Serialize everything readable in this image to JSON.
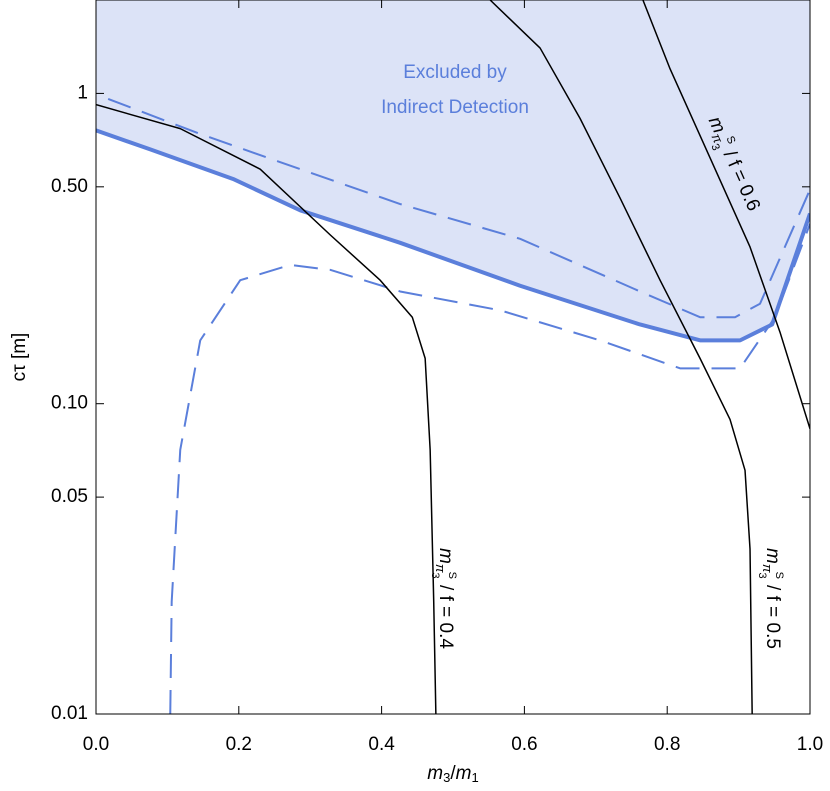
{
  "chart_data": {
    "type": "line",
    "ylabel": "cτ [m]",
    "xlabel_parts": [
      "m",
      "3",
      "/",
      "m",
      "1"
    ],
    "xlim": [
      0,
      1
    ],
    "xticks": [
      {
        "value": 0,
        "label": "0.0"
      },
      0.2,
      0.4,
      0.6,
      0.8,
      {
        "value": 1,
        "label": "1.0"
      }
    ],
    "ylim": [
      0.01,
      2
    ],
    "log_y": true,
    "yticks": [
      0.01,
      0.05,
      {
        "value": 0.1,
        "label": "0.10"
      },
      {
        "value": 0.5,
        "label": "0.50"
      },
      1
    ],
    "region_text": [
      "Excluded by",
      "Indirect Detection"
    ],
    "region_color": "#dce3f7",
    "mass_label": {
      "symbol": "m",
      "sub": "π",
      "sub_index": "3",
      "sup": "S"
    },
    "series": [
      {
        "color": "#5b7fdb",
        "style": "solid",
        "width": 4,
        "fill_above": true,
        "x": [
          0,
          0.076,
          0.192,
          0.286,
          0.426,
          0.594,
          0.762,
          0.846,
          0.902,
          0.947,
          1.0
        ],
        "values": [
          0.76,
          0.66,
          0.53,
          0.42,
          0.33,
          0.24,
          0.18,
          0.16,
          0.16,
          0.18,
          0.41
        ]
      },
      {
        "color": "#5b7fdb",
        "style": "dashed",
        "width": 2,
        "x": [
          0.017,
          0.146,
          0.286,
          0.426,
          0.594,
          0.762,
          0.846,
          0.895,
          0.93,
          1.0
        ],
        "values": [
          0.96,
          0.74,
          0.57,
          0.44,
          0.34,
          0.23,
          0.19,
          0.19,
          0.21,
          0.49
        ]
      },
      {
        "color": "#5b7fdb",
        "style": "dashed",
        "width": 2,
        "x": [
          0.104,
          0.106,
          0.118,
          0.146,
          0.202,
          0.272,
          0.328,
          0.426,
          0.566,
          0.706,
          0.818,
          0.902,
          0.951,
          1.0
        ],
        "values": [
          0.01,
          0.023,
          0.071,
          0.16,
          0.25,
          0.28,
          0.27,
          0.23,
          0.2,
          0.16,
          0.13,
          0.13,
          0.19,
          0.38
        ]
      },
      {
        "color": "#000000",
        "style": "solid",
        "width": 1.5,
        "label": "/ f = 0.4",
        "x": [
          0,
          0.118,
          0.23,
          0.328,
          0.398,
          0.443,
          0.461,
          0.468,
          0.473,
          0.476
        ],
        "values": [
          0.92,
          0.77,
          0.57,
          0.35,
          0.25,
          0.19,
          0.14,
          0.071,
          0.023,
          0.01
        ]
      },
      {
        "color": "#000000",
        "style": "solid",
        "width": 1.5,
        "label": "/ f = 0.5",
        "x": [
          0.552,
          0.622,
          0.678,
          0.734,
          0.79,
          0.846,
          0.888,
          0.909,
          0.916,
          0.919
        ],
        "values": [
          2,
          1.4,
          0.83,
          0.46,
          0.25,
          0.14,
          0.089,
          0.061,
          0.034,
          0.01
        ]
      },
      {
        "color": "#000000",
        "style": "solid",
        "width": 1.5,
        "label": "/ f = 0.6",
        "x": [
          0.766,
          0.804,
          0.86,
          0.916,
          0.958,
          1.0
        ],
        "values": [
          2,
          1.2,
          0.62,
          0.32,
          0.17,
          0.083
        ]
      }
    ]
  }
}
